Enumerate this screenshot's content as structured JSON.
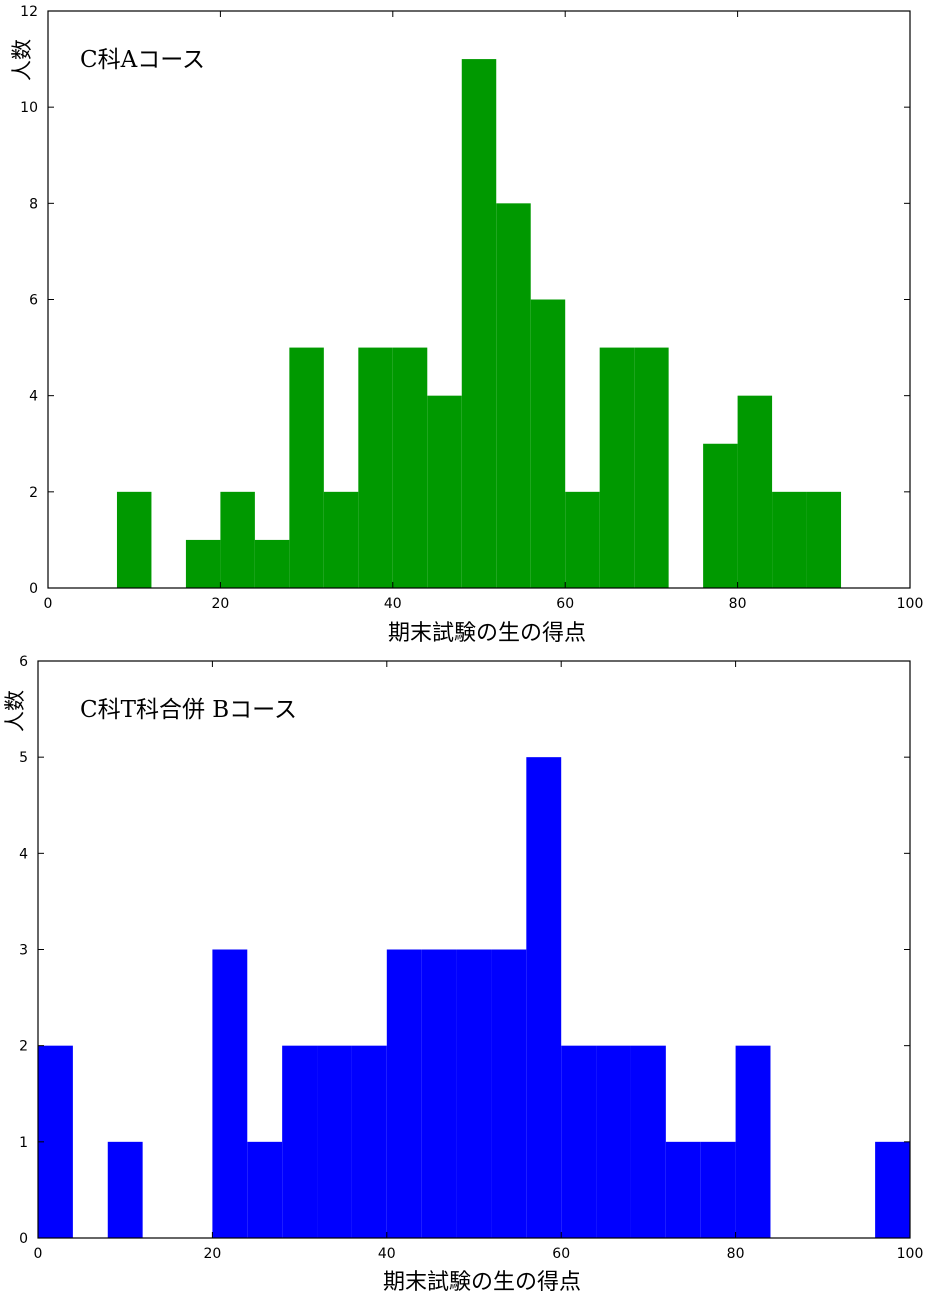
{
  "chart_data": [
    {
      "type": "bar",
      "title": "",
      "annotation": "C科Aコース",
      "xlabel": "期末試験の生の得点",
      "ylabel": "人数",
      "xlim": [
        0,
        100
      ],
      "ylim": [
        0,
        12
      ],
      "xticks": [
        0,
        20,
        40,
        60,
        80,
        100
      ],
      "yticks": [
        0,
        2,
        4,
        6,
        8,
        10,
        12
      ],
      "bin_width": 4,
      "bin_starts": [
        8,
        16,
        20,
        24,
        28,
        32,
        36,
        40,
        44,
        48,
        52,
        56,
        60,
        64,
        68,
        76,
        80,
        84,
        88
      ],
      "values": [
        2,
        1,
        2,
        1,
        5,
        2,
        5,
        5,
        4,
        11,
        8,
        6,
        2,
        5,
        5,
        3,
        4,
        2,
        2
      ],
      "color": "#009900",
      "grid": false
    },
    {
      "type": "bar",
      "title": "",
      "annotation": "C科T科合併 Bコース",
      "xlabel": "期末試験の生の得点",
      "ylabel": "人数",
      "xlim": [
        0,
        100
      ],
      "ylim": [
        0,
        6
      ],
      "xticks": [
        0,
        20,
        40,
        60,
        80,
        100
      ],
      "yticks": [
        0,
        1,
        2,
        3,
        4,
        5,
        6
      ],
      "bin_width": 4,
      "bin_starts": [
        0,
        8,
        20,
        24,
        28,
        32,
        36,
        40,
        44,
        48,
        52,
        56,
        60,
        64,
        68,
        72,
        76,
        80,
        96
      ],
      "values": [
        2,
        1,
        3,
        1,
        2,
        2,
        2,
        3,
        3,
        3,
        3,
        5,
        2,
        2,
        2,
        1,
        1,
        2,
        1
      ],
      "color": "#0000ff",
      "grid": false
    }
  ]
}
